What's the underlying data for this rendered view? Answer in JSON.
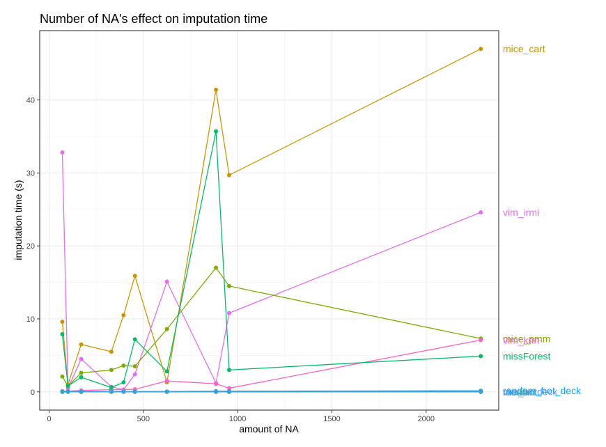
{
  "chart_data": {
    "type": "line",
    "title": "Number of NA's effect on imputation time",
    "xlabel": "amount of NA",
    "ylabel": "imputation time (s)",
    "xlim": [
      -50,
      2385
    ],
    "ylim": [
      -2.5,
      49.5
    ],
    "x_ticks": [
      0,
      500,
      1000,
      1500,
      2000
    ],
    "y_ticks": [
      0,
      10,
      20,
      30,
      40
    ],
    "grid": true,
    "legend": "direct-labels-right",
    "series": [
      {
        "name": "mice_cart",
        "color": "#CD9600",
        "x": [
          70,
          100,
          170,
          330,
          395,
          455,
          625,
          885,
          955,
          2290
        ],
        "y": [
          9.6,
          1.0,
          6.5,
          5.5,
          10.5,
          15.9,
          1.3,
          41.4,
          29.7,
          47.0
        ]
      },
      {
        "name": "vim_irmi",
        "color": "#E76BF3",
        "x": [
          70,
          100,
          170,
          330,
          395,
          455,
          625,
          885,
          955,
          2290
        ],
        "y": [
          32.8,
          0.5,
          4.5,
          0.7,
          0.3,
          2.4,
          15.1,
          1.2,
          10.8,
          24.6
        ]
      },
      {
        "name": "mice_pmm",
        "color": "#7CAE00",
        "x": [
          70,
          100,
          170,
          330,
          395,
          455,
          625,
          885,
          955,
          2290
        ],
        "y": [
          2.1,
          0.8,
          2.6,
          3.0,
          3.6,
          3.5,
          8.6,
          17.0,
          14.5,
          7.3
        ]
      },
      {
        "name": "vim_knn",
        "color": "#FF61C3",
        "x": [
          70,
          100,
          170,
          330,
          395,
          455,
          625,
          885,
          955,
          2290
        ],
        "y": [
          0.1,
          0.1,
          0.2,
          0.3,
          0.3,
          0.35,
          1.5,
          1.1,
          0.5,
          7.1
        ]
      },
      {
        "name": "missForest",
        "color": "#00BE67",
        "x": [
          70,
          100,
          170,
          330,
          395,
          455,
          625,
          885,
          955,
          2290
        ],
        "y": [
          7.9,
          0.8,
          2.0,
          0.6,
          1.3,
          7.2,
          2.8,
          35.7,
          3.0,
          4.9
        ]
      },
      {
        "name": "random_hot_deck",
        "color": "#00A9FF",
        "x": [
          70,
          100,
          170,
          330,
          395,
          455,
          625,
          885,
          955,
          2290
        ],
        "y": [
          0.05,
          0.05,
          0.05,
          0.05,
          0.05,
          0.05,
          0.05,
          0.1,
          0.1,
          0.15
        ]
      },
      {
        "name": "median",
        "color": "#00BFC4",
        "x": [
          70,
          100,
          170,
          330,
          395,
          455,
          625,
          885,
          955,
          2290
        ],
        "y": [
          0.0,
          0.0,
          0.0,
          0.0,
          0.0,
          0.0,
          0.0,
          0.0,
          0.0,
          0.0
        ]
      },
      {
        "name": "mode",
        "color": "#F8766D",
        "x": [
          70,
          100,
          170,
          330,
          395,
          455,
          625,
          885,
          955,
          2290
        ],
        "y": [
          0.0,
          0.0,
          0.0,
          0.0,
          0.0,
          0.0,
          0.0,
          0.0,
          0.0,
          0.0
        ]
      },
      {
        "name": "mean",
        "color": "#00C19A",
        "x": [
          70,
          100,
          170,
          330,
          395,
          455,
          625,
          885,
          955,
          2290
        ],
        "y": [
          0.0,
          0.0,
          0.0,
          0.0,
          0.0,
          0.0,
          0.0,
          0.0,
          0.0,
          0.0
        ]
      },
      {
        "name": "vim_hotdeck",
        "color": "#619CFF",
        "x": [
          70,
          100,
          170,
          330,
          395,
          455,
          625,
          885,
          955,
          2290
        ],
        "y": [
          0.05,
          0.05,
          0.05,
          0.05,
          0.05,
          0.05,
          0.05,
          0.05,
          0.05,
          0.05
        ]
      },
      {
        "name": "random",
        "color": "#35A2D6",
        "x": [
          70,
          100,
          170,
          330,
          395,
          455,
          625,
          885,
          955,
          2290
        ],
        "y": [
          0.0,
          0.0,
          0.0,
          0.0,
          0.0,
          0.0,
          0.0,
          0.0,
          0.0,
          0.0
        ]
      }
    ]
  }
}
